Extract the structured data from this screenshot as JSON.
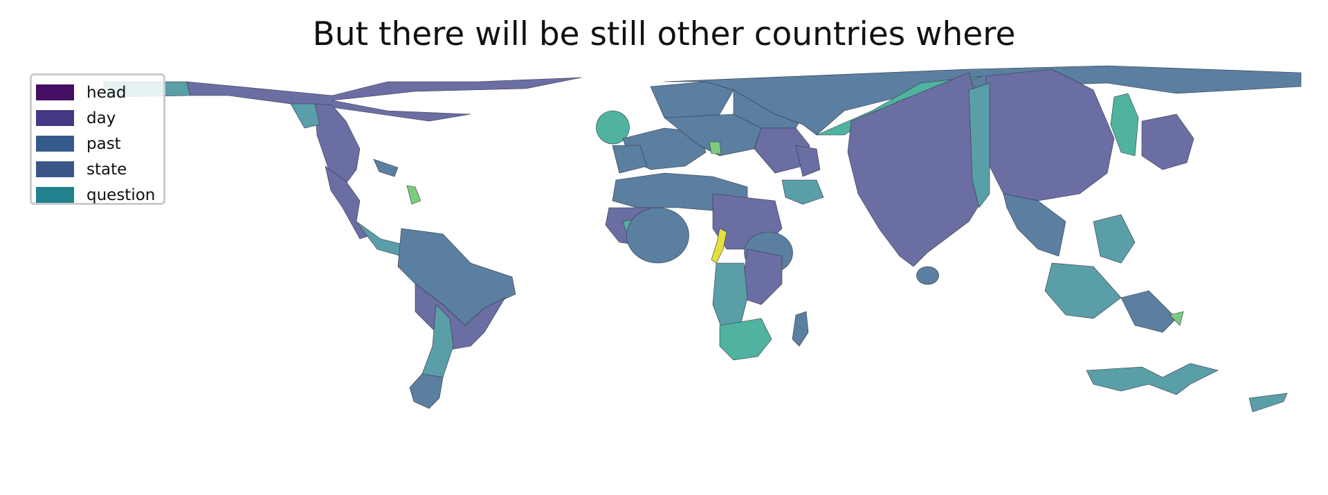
{
  "title": "But there will be still other countries where",
  "legend": {
    "location": "upper-left",
    "items": [
      {
        "label": "head",
        "color": "#440f62"
      },
      {
        "label": "day",
        "color": "#433982"
      },
      {
        "label": "past",
        "color": "#355b8d"
      },
      {
        "label": "state",
        "color": "#3a5588"
      },
      {
        "label": "question",
        "color": "#21818c"
      }
    ]
  },
  "map": {
    "type": "cartogram",
    "colors": {
      "purple": "#6b6ea3",
      "blue": "#5a7fa0",
      "teal": "#5a9ea8",
      "green_teal": "#4fb3a0",
      "light_green": "#7ccc7d",
      "yellow": "#e6e03d",
      "outline": "#333344"
    }
  }
}
